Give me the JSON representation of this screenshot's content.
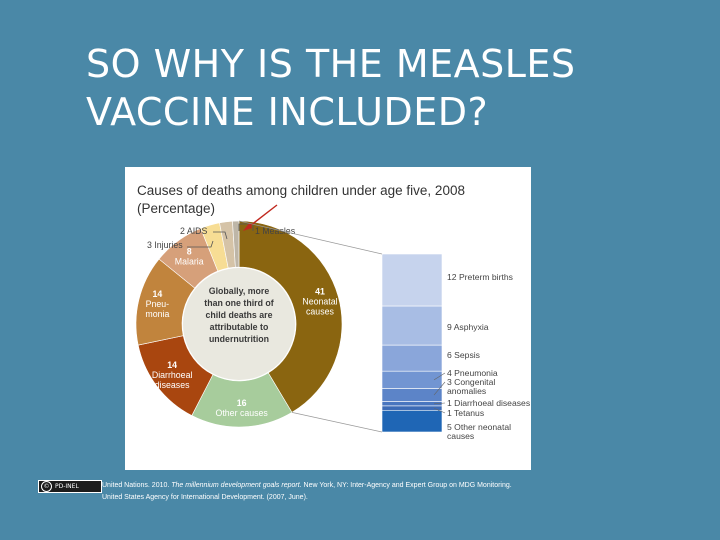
{
  "slide": {
    "title_line1": "SO WHY IS THE MEASLES",
    "title_line2": "VACCINE INCLUDED?"
  },
  "license": {
    "cc_symbol": "©",
    "label": "PD-INEL"
  },
  "footer": {
    "line1_a": "United Nations. 2010. ",
    "line1_italic": "The millennium development goals report",
    "line1_b": ". New York, NY: Inter-Agency and Expert Group on MDG Monitoring.",
    "line2": "United States Agency for International Development. (2007, June)."
  },
  "chart_data": {
    "type": "pie",
    "title_line1": "Causes of deaths among children under age five, 2008",
    "title_line2": "(Percentage)",
    "center_text": [
      "Globally, more",
      "than one third of",
      "child deaths are",
      "attributable to",
      "undernutrition"
    ],
    "slices": [
      {
        "value": 41,
        "label_lines": [
          "41",
          "Neonatal",
          "causes"
        ],
        "color": "#8a6510"
      },
      {
        "value": 16,
        "label_lines": [
          "16",
          "Other causes"
        ],
        "color": "#a7cc9c"
      },
      {
        "value": 14,
        "label_lines": [
          "14",
          "Diarrhoeal",
          "diseases"
        ],
        "color": "#a9460f"
      },
      {
        "value": 14,
        "label_lines": [
          "14",
          "Pneu-",
          "monia"
        ],
        "color": "#c1843d"
      },
      {
        "value": 8,
        "label_lines": [
          "8",
          "Malaria"
        ],
        "color": "#d6a07a"
      },
      {
        "value": 3,
        "label_lines": [
          "3 Injuries"
        ],
        "color": "#f7dd94"
      },
      {
        "value": 2,
        "label_lines": [
          "2 AIDS"
        ],
        "color": "#d5c3a7"
      },
      {
        "value": 1,
        "label_lines": [
          "1 Measles"
        ],
        "color": "#beb6a7"
      }
    ],
    "neonatal_breakdown": [
      {
        "value": 12,
        "label_lines": [
          "12 Preterm births"
        ],
        "color": "#c6d3ed"
      },
      {
        "value": 9,
        "label_lines": [
          "9 Asphyxia"
        ],
        "color": "#a8bde4"
      },
      {
        "value": 6,
        "label_lines": [
          "6 Sepsis"
        ],
        "color": "#8aa6da"
      },
      {
        "value": 4,
        "label_lines": [
          "4 Pneumonia"
        ],
        "color": "#7295d2"
      },
      {
        "value": 3,
        "label_lines": [
          "3 Congenital",
          "anomalies"
        ],
        "color": "#5c84c8"
      },
      {
        "value": 1,
        "label_lines": [
          "1 Diarrhoeal diseases"
        ],
        "color": "#4a76bf"
      },
      {
        "value": 1,
        "label_lines": [
          "1 Tetanus"
        ],
        "color": "#3d6bb6"
      },
      {
        "value": 5,
        "label_lines": [
          "5 Other neonatal",
          "causes"
        ],
        "color": "#1f66b5"
      }
    ],
    "annotation_colors": {
      "arrow": "#c0281e",
      "connector": "#555555"
    }
  }
}
